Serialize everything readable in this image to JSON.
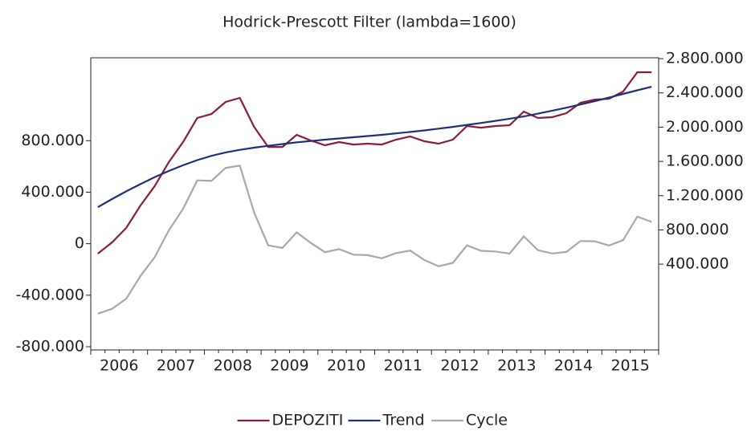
{
  "chart_data": {
    "type": "line",
    "title": "Hodrick-Prescott Filter (lambda=1600)",
    "categories": [
      "2006",
      null,
      null,
      null,
      "2007",
      null,
      null,
      null,
      "2008",
      null,
      null,
      null,
      "2009",
      null,
      null,
      null,
      "2010",
      null,
      null,
      null,
      "2011",
      null,
      null,
      null,
      "2012",
      null,
      null,
      null,
      "2013",
      null,
      null,
      null,
      "2014",
      null,
      null,
      null,
      "2015",
      null,
      null,
      null
    ],
    "series": [
      {
        "name": "DEPOZITI",
        "color": "#8b1a3c",
        "axis": "y2",
        "values": [
          523000,
          654000,
          823000,
          1085000,
          1310000,
          1591000,
          1826000,
          2107000,
          2153000,
          2294000,
          2341000,
          2004000,
          1769000,
          1769000,
          1910000,
          1844000,
          1788000,
          1826000,
          1797000,
          1807000,
          1797000,
          1854000,
          1891000,
          1835000,
          1807000,
          1854000,
          2013000,
          1994000,
          2013000,
          2022000,
          2182000,
          2107000,
          2116000,
          2163000,
          2285000,
          2322000,
          2331000,
          2416000,
          2641000,
          2641000
        ]
      },
      {
        "name": "Trend",
        "color": "#1f2f7a",
        "axis": "y2",
        "values": [
          1066000,
          1160000,
          1250000,
          1335000,
          1415000,
          1488000,
          1555000,
          1615000,
          1665000,
          1705000,
          1735000,
          1760000,
          1782000,
          1802000,
          1822000,
          1838000,
          1854000,
          1868000,
          1882000,
          1896000,
          1910000,
          1927000,
          1944000,
          1962000,
          1982000,
          2003000,
          2026000,
          2049000,
          2073000,
          2099000,
          2125000,
          2158000,
          2192000,
          2227000,
          2264000,
          2303000,
          2345000,
          2388000,
          2430000,
          2472000
        ]
      },
      {
        "name": "Cycle",
        "color": "#a8a8a8",
        "axis": "y",
        "values": [
          -543000,
          -506000,
          -427000,
          -250000,
          -105000,
          103000,
          271000,
          492000,
          488000,
          589000,
          606000,
          244000,
          -13000,
          -33000,
          88000,
          6000,
          -66000,
          -42000,
          -85000,
          -89000,
          -113000,
          -73000,
          -53000,
          -127000,
          -175000,
          -149000,
          -13000,
          -55000,
          -60000,
          -77000,
          57000,
          -51000,
          -76000,
          -64000,
          21000,
          19000,
          -14000,
          28000,
          211000,
          169000
        ]
      }
    ],
    "ylim": [
      -825000,
      1444000
    ],
    "yticks": [
      {
        "value": -800000,
        "label": "-800.000"
      },
      {
        "value": -400000,
        "label": "-400.000"
      },
      0,
      {
        "value": 400000,
        "label": "400.000"
      },
      {
        "value": 800000,
        "label": "800.000"
      }
    ],
    "y2lim": [
      -602000,
      2810000
    ],
    "y2ticks": [
      {
        "value": 400000,
        "label": "400.000"
      },
      {
        "value": 800000,
        "label": "800.000"
      },
      {
        "value": 1200000,
        "label": "1.200.000"
      },
      {
        "value": 1600000,
        "label": "1.600.000"
      },
      {
        "value": 2000000,
        "label": "2.000.000"
      },
      {
        "value": 2400000,
        "label": "2.400.000"
      },
      {
        "value": 2800000,
        "label": "2.800.000"
      }
    ],
    "legend": "bottom"
  }
}
